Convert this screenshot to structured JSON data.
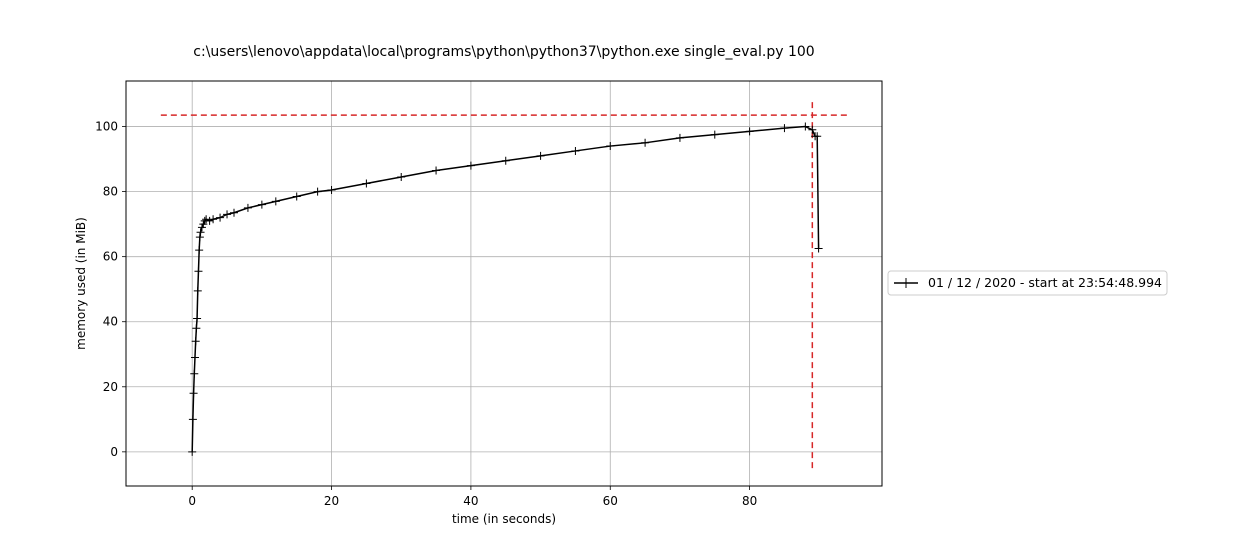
{
  "chart_data": {
    "type": "line",
    "title": "c:\\users\\lenovo\\appdata\\local\\programs\\python\\python37\\python.exe single_eval.py 100",
    "xlabel": "time (in seconds)",
    "ylabel": "memory used (in MiB)",
    "xlim": [
      -9.5,
      99
    ],
    "ylim": [
      -10.5,
      114
    ],
    "xticks": [
      0,
      20,
      40,
      60,
      80
    ],
    "yticks": [
      0,
      20,
      40,
      60,
      80,
      100
    ],
    "grid": true,
    "legend_position": "right, outside axes",
    "series": [
      {
        "name": "01 / 12 / 2020 - start at 23:54:48.994",
        "color": "#000000",
        "marker": "+",
        "x": [
          0.0,
          0.1,
          0.2,
          0.3,
          0.4,
          0.5,
          0.6,
          0.7,
          0.8,
          0.9,
          1.0,
          1.1,
          1.2,
          1.4,
          1.6,
          1.8,
          2.0,
          2.5,
          3.0,
          4.0,
          5.0,
          6.0,
          8.0,
          10.0,
          12.0,
          15.0,
          18.0,
          20.0,
          25.0,
          30.0,
          35.0,
          40.0,
          45.0,
          50.0,
          55.0,
          60.0,
          65.0,
          70.0,
          75.0,
          80.0,
          85.0,
          88.0,
          89.0,
          89.4,
          89.7,
          89.9
        ],
        "y": [
          0.0,
          10.0,
          18.0,
          24.0,
          29.0,
          34.0,
          38.0,
          41.0,
          49.5,
          55.5,
          62.0,
          66.0,
          67.5,
          69.0,
          70.0,
          71.0,
          71.5,
          71.0,
          71.5,
          72.0,
          73.0,
          73.5,
          75.0,
          76.0,
          77.0,
          78.5,
          80.0,
          80.5,
          82.5,
          84.5,
          86.5,
          88.0,
          89.5,
          91.0,
          92.5,
          94.0,
          95.0,
          96.5,
          97.5,
          98.5,
          99.5,
          100.0,
          99.0,
          97.0,
          97.0,
          62.5
        ]
      }
    ],
    "annotations": [
      {
        "kind": "horizontal dashed line",
        "y": 103.5,
        "x_from": -4.5,
        "x_to": 94.5,
        "color": "#d62728"
      },
      {
        "kind": "vertical dashed line",
        "x": 89.0,
        "y_from": -5,
        "y_to": 108,
        "color": "#d62728"
      }
    ]
  }
}
